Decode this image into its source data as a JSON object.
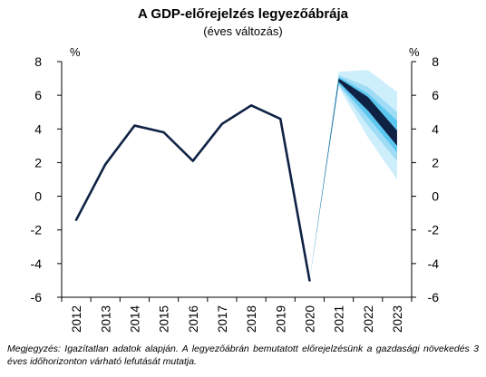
{
  "chart_data": {
    "type": "line",
    "title": "A GDP-előrejelzés legyezőábrája",
    "subtitle": "(éves változás)",
    "ylabel_left": "%",
    "ylabel_right": "%",
    "ylim": [
      -6,
      8
    ],
    "yticks": [
      "8",
      "6",
      "4",
      "2",
      "0",
      "-2",
      "-4",
      "-6"
    ],
    "ytick_values": [
      8,
      6,
      4,
      2,
      0,
      -2,
      -4,
      -6
    ],
    "categories": [
      "2012",
      "2013",
      "2014",
      "2015",
      "2016",
      "2017",
      "2018",
      "2019",
      "2020",
      "2021",
      "2022",
      "2023"
    ],
    "series": [
      {
        "values": [
          -1.4,
          1.9,
          4.2,
          3.8,
          2.1,
          4.3,
          5.4,
          4.6,
          -5.0,
          null,
          null,
          null
        ]
      }
    ],
    "fan": {
      "start_index": 8,
      "start_value": -5.0,
      "bands": [
        {
          "color": "#cdeefb",
          "lower": [
            6.5,
            3.5,
            1.0
          ],
          "upper": [
            7.4,
            7.5,
            6.2
          ]
        },
        {
          "color": "#9fdcf6",
          "lower": [
            6.6,
            4.2,
            2.1
          ],
          "upper": [
            7.2,
            6.5,
            5.0
          ]
        },
        {
          "color": "#5cc8f0",
          "lower": [
            6.7,
            4.7,
            2.6
          ],
          "upper": [
            7.1,
            6.1,
            4.5
          ]
        },
        {
          "color": "#0f2244",
          "lower": [
            6.8,
            5.1,
            3.0
          ],
          "upper": [
            7.0,
            5.9,
            3.9
          ]
        }
      ]
    },
    "grid": false,
    "line_color": "#0f2244"
  },
  "note": "Megjegyzés: Igazítatlan adatok alapján. A legyezőábrán bemutatott előrejelzésünk a gazdasági növekedés 3 éves időhorizonton várható lefutását mutatja."
}
